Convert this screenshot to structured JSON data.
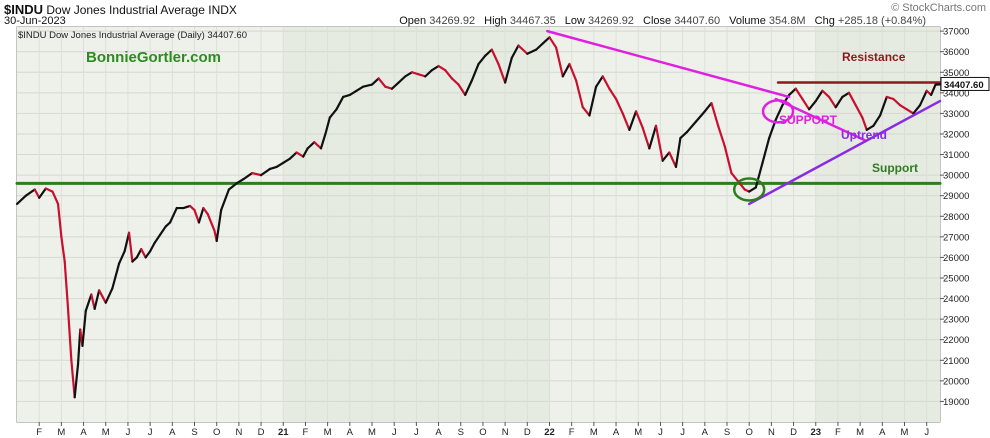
{
  "header": {
    "symbol": "$INDU",
    "name": "Dow Jones Industrial Average",
    "exchange": "INDX",
    "source": "© StockCharts.com",
    "date": "30-Jun-2023",
    "open_label": "Open",
    "open": "34269.92",
    "high_label": "High",
    "high": "34467.35",
    "low_label": "Low",
    "low": "34269.92",
    "close_label": "Close",
    "close": "34407.60",
    "volume_label": "Volume",
    "volume": "354.8M",
    "chg_label": "Chg",
    "chg": "+285.18 (+0.84%)"
  },
  "chart_data": {
    "type": "line",
    "legend_text": "$INDU Dow Jones Industrial Average (Daily) 34407.60",
    "watermark": "BonnieGortler.com",
    "last_price_label": "34407.60",
    "ylim": [
      18000,
      37200
    ],
    "y_ticks": [
      19000,
      20000,
      21000,
      22000,
      23000,
      24000,
      25000,
      26000,
      27000,
      28000,
      29000,
      30000,
      31000,
      32000,
      33000,
      34000,
      35000,
      36000,
      37000
    ],
    "x_range": [
      0,
      41.6
    ],
    "x_ticks": [
      {
        "label": "F",
        "m": 1
      },
      {
        "label": "M",
        "m": 2
      },
      {
        "label": "A",
        "m": 3
      },
      {
        "label": "M",
        "m": 4
      },
      {
        "label": "J",
        "m": 5
      },
      {
        "label": "J",
        "m": 6
      },
      {
        "label": "A",
        "m": 7
      },
      {
        "label": "S",
        "m": 8
      },
      {
        "label": "O",
        "m": 9
      },
      {
        "label": "N",
        "m": 10
      },
      {
        "label": "D",
        "m": 11
      },
      {
        "label": "21",
        "m": 12
      },
      {
        "label": "F",
        "m": 13
      },
      {
        "label": "M",
        "m": 14
      },
      {
        "label": "A",
        "m": 15
      },
      {
        "label": "M",
        "m": 16
      },
      {
        "label": "J",
        "m": 17
      },
      {
        "label": "J",
        "m": 18
      },
      {
        "label": "A",
        "m": 19
      },
      {
        "label": "S",
        "m": 20
      },
      {
        "label": "O",
        "m": 21
      },
      {
        "label": "N",
        "m": 22
      },
      {
        "label": "D",
        "m": 23
      },
      {
        "label": "22",
        "m": 24
      },
      {
        "label": "F",
        "m": 25
      },
      {
        "label": "M",
        "m": 26
      },
      {
        "label": "A",
        "m": 27
      },
      {
        "label": "M",
        "m": 28
      },
      {
        "label": "J",
        "m": 29
      },
      {
        "label": "J",
        "m": 30
      },
      {
        "label": "A",
        "m": 31
      },
      {
        "label": "S",
        "m": 32
      },
      {
        "label": "O",
        "m": 33
      },
      {
        "label": "N",
        "m": 34
      },
      {
        "label": "D",
        "m": 35
      },
      {
        "label": "23",
        "m": 36
      },
      {
        "label": "F",
        "m": 37
      },
      {
        "label": "M",
        "m": 38
      },
      {
        "label": "A",
        "m": 39
      },
      {
        "label": "M",
        "m": 40
      },
      {
        "label": "J",
        "m": 41
      }
    ],
    "price_series": [
      [
        0.0,
        28600
      ],
      [
        0.4,
        29000
      ],
      [
        0.8,
        29300
      ],
      [
        1.0,
        28900
      ],
      [
        1.3,
        29350
      ],
      [
        1.6,
        29200
      ],
      [
        1.85,
        28600
      ],
      [
        2.0,
        27000
      ],
      [
        2.15,
        25800
      ],
      [
        2.3,
        23500
      ],
      [
        2.45,
        21000
      ],
      [
        2.6,
        19200
      ],
      [
        2.75,
        20800
      ],
      [
        2.85,
        22500
      ],
      [
        2.95,
        21700
      ],
      [
        3.1,
        23400
      ],
      [
        3.35,
        24200
      ],
      [
        3.5,
        23500
      ],
      [
        3.7,
        24400
      ],
      [
        4.0,
        23800
      ],
      [
        4.3,
        24500
      ],
      [
        4.6,
        25700
      ],
      [
        4.85,
        26300
      ],
      [
        5.05,
        27200
      ],
      [
        5.2,
        25800
      ],
      [
        5.4,
        26000
      ],
      [
        5.6,
        26400
      ],
      [
        5.8,
        26000
      ],
      [
        6.0,
        26300
      ],
      [
        6.2,
        26700
      ],
      [
        6.45,
        27100
      ],
      [
        6.7,
        27500
      ],
      [
        6.9,
        27700
      ],
      [
        7.2,
        28400
      ],
      [
        7.5,
        28400
      ],
      [
        7.8,
        28500
      ],
      [
        8.0,
        28300
      ],
      [
        8.2,
        27700
      ],
      [
        8.4,
        28400
      ],
      [
        8.6,
        28100
      ],
      [
        8.9,
        27300
      ],
      [
        9.0,
        26800
      ],
      [
        9.2,
        28300
      ],
      [
        9.55,
        29300
      ],
      [
        9.9,
        29600
      ],
      [
        10.2,
        29800
      ],
      [
        10.6,
        30100
      ],
      [
        11.0,
        30000
      ],
      [
        11.4,
        30300
      ],
      [
        11.7,
        30400
      ],
      [
        12.0,
        30600
      ],
      [
        12.3,
        30800
      ],
      [
        12.6,
        31100
      ],
      [
        12.9,
        30900
      ],
      [
        13.1,
        31300
      ],
      [
        13.4,
        31600
      ],
      [
        13.7,
        31300
      ],
      [
        13.9,
        32000
      ],
      [
        14.1,
        32800
      ],
      [
        14.4,
        33200
      ],
      [
        14.7,
        33800
      ],
      [
        15.0,
        33900
      ],
      [
        15.3,
        34100
      ],
      [
        15.6,
        34300
      ],
      [
        16.0,
        34400
      ],
      [
        16.3,
        34700
      ],
      [
        16.6,
        34300
      ],
      [
        16.9,
        34200
      ],
      [
        17.2,
        34500
      ],
      [
        17.5,
        34800
      ],
      [
        17.8,
        35000
      ],
      [
        18.1,
        34900
      ],
      [
        18.4,
        34800
      ],
      [
        18.7,
        35100
      ],
      [
        19.0,
        35300
      ],
      [
        19.3,
        35100
      ],
      [
        19.6,
        34700
      ],
      [
        19.9,
        34400
      ],
      [
        20.2,
        33900
      ],
      [
        20.5,
        34600
      ],
      [
        20.8,
        35400
      ],
      [
        21.1,
        35800
      ],
      [
        21.4,
        36100
      ],
      [
        21.7,
        35400
      ],
      [
        22.0,
        34500
      ],
      [
        22.3,
        35700
      ],
      [
        22.6,
        36300
      ],
      [
        23.0,
        35900
      ],
      [
        23.4,
        36100
      ],
      [
        23.7,
        36400
      ],
      [
        24.0,
        36700
      ],
      [
        24.3,
        36200
      ],
      [
        24.6,
        34800
      ],
      [
        24.9,
        35400
      ],
      [
        25.2,
        34600
      ],
      [
        25.5,
        33300
      ],
      [
        25.8,
        32900
      ],
      [
        26.1,
        34300
      ],
      [
        26.4,
        34800
      ],
      [
        26.7,
        34200
      ],
      [
        27.0,
        33700
      ],
      [
        27.3,
        33000
      ],
      [
        27.6,
        32200
      ],
      [
        27.9,
        33100
      ],
      [
        28.2,
        32300
      ],
      [
        28.5,
        31300
      ],
      [
        28.8,
        32400
      ],
      [
        29.1,
        30700
      ],
      [
        29.4,
        31100
      ],
      [
        29.7,
        30400
      ],
      [
        29.9,
        31800
      ],
      [
        30.2,
        32100
      ],
      [
        30.6,
        32600
      ],
      [
        31.0,
        33100
      ],
      [
        31.3,
        33500
      ],
      [
        31.6,
        32400
      ],
      [
        31.9,
        31400
      ],
      [
        32.2,
        30100
      ],
      [
        32.5,
        29700
      ],
      [
        32.8,
        29300
      ],
      [
        33.0,
        29200
      ],
      [
        33.3,
        29400
      ],
      [
        33.6,
        30600
      ],
      [
        33.9,
        31800
      ],
      [
        34.2,
        32700
      ],
      [
        34.5,
        33400
      ],
      [
        34.8,
        33900
      ],
      [
        35.1,
        34200
      ],
      [
        35.4,
        33700
      ],
      [
        35.7,
        33200
      ],
      [
        36.0,
        33600
      ],
      [
        36.3,
        34100
      ],
      [
        36.6,
        33800
      ],
      [
        36.9,
        33300
      ],
      [
        37.2,
        33800
      ],
      [
        37.5,
        34000
      ],
      [
        37.8,
        33400
      ],
      [
        38.1,
        32800
      ],
      [
        38.3,
        32200
      ],
      [
        38.6,
        32400
      ],
      [
        38.9,
        32900
      ],
      [
        39.2,
        33800
      ],
      [
        39.5,
        33700
      ],
      [
        39.8,
        33400
      ],
      [
        40.1,
        33200
      ],
      [
        40.4,
        33000
      ],
      [
        40.7,
        33400
      ],
      [
        41.0,
        34100
      ],
      [
        41.2,
        33900
      ],
      [
        41.4,
        34400
      ],
      [
        41.6,
        34407.6
      ]
    ],
    "annotations": {
      "support_line": {
        "label": "Support",
        "color": "#2e7d1f",
        "from": [
          0.0,
          29600
        ],
        "to": [
          41.6,
          29600
        ]
      },
      "resistance_line": {
        "label": "Resistance",
        "color": "#8b1a1a",
        "from": [
          34.3,
          34500
        ],
        "to": [
          41.6,
          34500
        ]
      },
      "downtrend_line": {
        "color": "#e020e0",
        "from": [
          23.9,
          37000
        ],
        "to": [
          34.8,
          33800
        ]
      },
      "support_line2": {
        "label": "SUPPORT",
        "color": "#e020e0",
        "from": [
          34.2,
          33700
        ],
        "to": [
          38.2,
          31700
        ]
      },
      "uptrend_line": {
        "label": "Uptrend",
        "color": "#8a2be2",
        "from": [
          33.0,
          28600
        ],
        "to": [
          41.6,
          33600
        ]
      },
      "circle_green": {
        "color": "#2e7d1f",
        "center": [
          33.0,
          29300
        ]
      },
      "circle_magenta": {
        "color": "#e020e0",
        "center": [
          34.3,
          33100
        ]
      }
    }
  }
}
